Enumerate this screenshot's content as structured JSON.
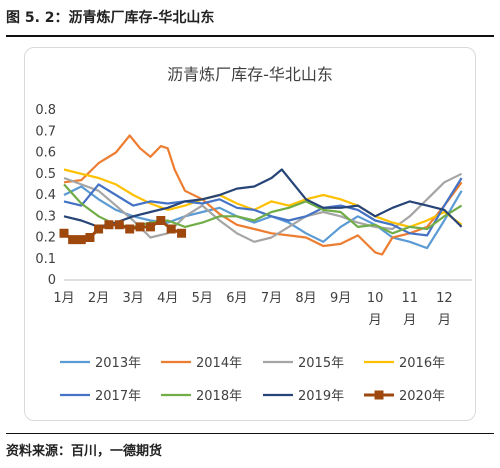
{
  "figure_caption": "图 5. 2：沥青炼厂库存-华北山东",
  "source_note": "资料来源：百川，一德期货",
  "chart_data": {
    "type": "line",
    "title": "沥青炼厂库存-华北山东",
    "xlabel": "",
    "ylabel": "",
    "ylim": [
      0,
      0.8
    ],
    "y_ticks": [
      "0",
      "0.1",
      "0.2",
      "0.3",
      "0.4",
      "0.5",
      "0.6",
      "0.7",
      "0.8"
    ],
    "x_ticks": [
      "1月",
      "2月",
      "3月",
      "4月",
      "5月",
      "6月",
      "7月",
      "8月",
      "9月",
      "10\n月",
      "11\n月",
      "12\n月"
    ],
    "grid": false,
    "legend_position": "bottom",
    "series": [
      {
        "name": "2013年",
        "color": "#5B9BD5",
        "marker": "none",
        "x": [
          1,
          1.5,
          2,
          2.5,
          3,
          3.5,
          4,
          4.5,
          5,
          5.5,
          6,
          6.5,
          7,
          7.5,
          8,
          8.5,
          9,
          9.5,
          10,
          10.5,
          11,
          11.5,
          12,
          12.5
        ],
        "y": [
          0.4,
          0.44,
          0.38,
          0.33,
          0.3,
          0.28,
          0.27,
          0.3,
          0.32,
          0.34,
          0.3,
          0.27,
          0.3,
          0.27,
          0.22,
          0.18,
          0.25,
          0.3,
          0.26,
          0.2,
          0.18,
          0.15,
          0.28,
          0.42
        ]
      },
      {
        "name": "2014年",
        "color": "#ED7D31",
        "marker": "none",
        "x": [
          1,
          1.5,
          2,
          2.5,
          2.9,
          3.2,
          3.5,
          3.8,
          4,
          4.2,
          4.5,
          5,
          5.5,
          6,
          6.5,
          7,
          7.5,
          8,
          8.5,
          9,
          9.5,
          10,
          10.2,
          10.5,
          11,
          11.5,
          12,
          12.5
        ],
        "y": [
          0.46,
          0.47,
          0.55,
          0.6,
          0.68,
          0.62,
          0.58,
          0.63,
          0.62,
          0.52,
          0.42,
          0.38,
          0.31,
          0.26,
          0.24,
          0.22,
          0.21,
          0.2,
          0.16,
          0.17,
          0.21,
          0.13,
          0.12,
          0.2,
          0.22,
          0.25,
          0.35,
          0.46
        ]
      },
      {
        "name": "2015年",
        "color": "#A5A5A5",
        "marker": "none",
        "x": [
          1,
          1.5,
          2,
          2.5,
          3,
          3.5,
          4,
          4.5,
          5,
          5.5,
          6,
          6.5,
          7,
          7.5,
          8,
          8.5,
          9,
          9.5,
          10,
          10.5,
          11,
          11.5,
          12,
          12.5
        ],
        "y": [
          0.48,
          0.45,
          0.42,
          0.35,
          0.28,
          0.2,
          0.22,
          0.3,
          0.35,
          0.28,
          0.22,
          0.18,
          0.2,
          0.25,
          0.3,
          0.32,
          0.3,
          0.27,
          0.25,
          0.24,
          0.3,
          0.38,
          0.46,
          0.5
        ]
      },
      {
        "name": "2016年",
        "color": "#FFC000",
        "marker": "none",
        "x": [
          1,
          1.5,
          2,
          2.5,
          3,
          3.5,
          4,
          4.5,
          5,
          5.5,
          6,
          6.5,
          7,
          7.5,
          8,
          8.5,
          9,
          9.5,
          10,
          10.5,
          11,
          11.5,
          12,
          12.5
        ],
        "y": [
          0.52,
          0.5,
          0.48,
          0.45,
          0.4,
          0.36,
          0.33,
          0.35,
          0.38,
          0.4,
          0.36,
          0.33,
          0.37,
          0.35,
          0.38,
          0.4,
          0.38,
          0.35,
          0.3,
          0.27,
          0.25,
          0.28,
          0.32,
          0.26
        ]
      },
      {
        "name": "2017年",
        "color": "#4472C4",
        "marker": "none",
        "x": [
          1,
          1.5,
          2,
          2.5,
          3,
          3.5,
          4,
          4.5,
          5,
          5.5,
          6,
          6.5,
          7,
          7.5,
          8,
          8.5,
          9,
          9.5,
          10,
          10.5,
          11,
          11.5,
          12,
          12.5
        ],
        "y": [
          0.37,
          0.35,
          0.45,
          0.4,
          0.35,
          0.37,
          0.36,
          0.37,
          0.36,
          0.38,
          0.34,
          0.33,
          0.3,
          0.28,
          0.3,
          0.34,
          0.35,
          0.33,
          0.28,
          0.26,
          0.22,
          0.21,
          0.35,
          0.48
        ]
      },
      {
        "name": "2018年",
        "color": "#70AD47",
        "marker": "none",
        "x": [
          1,
          1.5,
          2,
          2.5,
          3,
          3.5,
          4,
          4.5,
          5,
          5.5,
          6,
          6.5,
          7,
          7.5,
          8,
          8.5,
          9,
          9.5,
          10,
          10.5,
          11,
          11.5,
          12,
          12.5
        ],
        "y": [
          0.45,
          0.36,
          0.3,
          0.26,
          0.25,
          0.27,
          0.28,
          0.25,
          0.27,
          0.3,
          0.3,
          0.28,
          0.32,
          0.34,
          0.37,
          0.33,
          0.32,
          0.25,
          0.26,
          0.22,
          0.25,
          0.24,
          0.3,
          0.35
        ]
      },
      {
        "name": "2019年",
        "color": "#264478",
        "marker": "none",
        "x": [
          1,
          1.5,
          2,
          2.5,
          3,
          3.5,
          4,
          4.5,
          5,
          5.5,
          6,
          6.5,
          7,
          7.3,
          7.6,
          8,
          8.5,
          9,
          9.5,
          10,
          10.5,
          11,
          11.5,
          12,
          12.5
        ],
        "y": [
          0.3,
          0.28,
          0.25,
          0.27,
          0.3,
          0.32,
          0.34,
          0.37,
          0.38,
          0.4,
          0.43,
          0.44,
          0.48,
          0.52,
          0.46,
          0.38,
          0.34,
          0.34,
          0.35,
          0.3,
          0.34,
          0.37,
          0.35,
          0.33,
          0.25
        ]
      },
      {
        "name": "2020年",
        "color": "#9E480E",
        "marker": "square",
        "x": [
          1,
          1.25,
          1.5,
          1.75,
          2,
          2.3,
          2.6,
          2.9,
          3.2,
          3.5,
          3.8,
          4.1,
          4.4
        ],
        "y": [
          0.22,
          0.19,
          0.19,
          0.2,
          0.24,
          0.26,
          0.26,
          0.24,
          0.25,
          0.25,
          0.28,
          0.24,
          0.22
        ]
      }
    ]
  }
}
